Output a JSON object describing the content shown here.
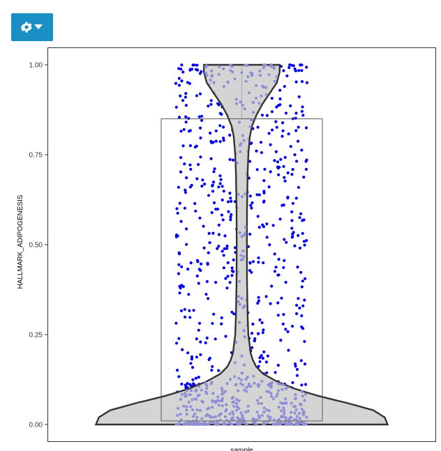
{
  "toolbar": {
    "settings_icon": "gear-icon",
    "dropdown_icon": "caret-down-icon",
    "button_color": "#1a8fc4"
  },
  "chart_data": {
    "type": "violin",
    "categories": [
      "sample"
    ],
    "xlabel": "sample",
    "ylabel": "HALLMARK_ADIPOGENESIS",
    "ylim": [
      0,
      1
    ],
    "yticks": [
      0.0,
      0.25,
      0.5,
      0.75,
      1.0
    ],
    "ytick_labels": [
      "0.00",
      "0.25",
      "0.50",
      "0.75",
      "1.00"
    ],
    "boxplot": {
      "q1": 0.01,
      "median": 0.01,
      "q3": 0.85,
      "whisker_low": 0.0,
      "whisker_high": 1.0
    },
    "violin_density": [
      [
        0.0,
        1.0
      ],
      [
        0.02,
        0.98
      ],
      [
        0.04,
        0.9
      ],
      [
        0.06,
        0.72
      ],
      [
        0.08,
        0.52
      ],
      [
        0.1,
        0.36
      ],
      [
        0.12,
        0.24
      ],
      [
        0.14,
        0.15
      ],
      [
        0.16,
        0.1
      ],
      [
        0.18,
        0.075
      ],
      [
        0.2,
        0.06
      ],
      [
        0.25,
        0.045
      ],
      [
        0.3,
        0.04
      ],
      [
        0.4,
        0.036
      ],
      [
        0.5,
        0.035
      ],
      [
        0.6,
        0.036
      ],
      [
        0.7,
        0.04
      ],
      [
        0.75,
        0.045
      ],
      [
        0.8,
        0.055
      ],
      [
        0.83,
        0.07
      ],
      [
        0.86,
        0.1
      ],
      [
        0.89,
        0.14
      ],
      [
        0.92,
        0.19
      ],
      [
        0.95,
        0.24
      ],
      [
        0.98,
        0.26
      ],
      [
        1.0,
        0.26
      ]
    ],
    "points": {
      "n_total": 900,
      "jitter_halfwidth": 0.5,
      "mass_near_zero": 0.37,
      "mass_near_one": 0.12,
      "color_outside_violin": "#0000ee",
      "color_inside_violin": "#8f8fd6"
    },
    "colors": {
      "violin_fill": "#cccccc",
      "violin_stroke": "#333333",
      "box_stroke": "#555555",
      "panel_border": "#333333"
    },
    "grid": false
  }
}
